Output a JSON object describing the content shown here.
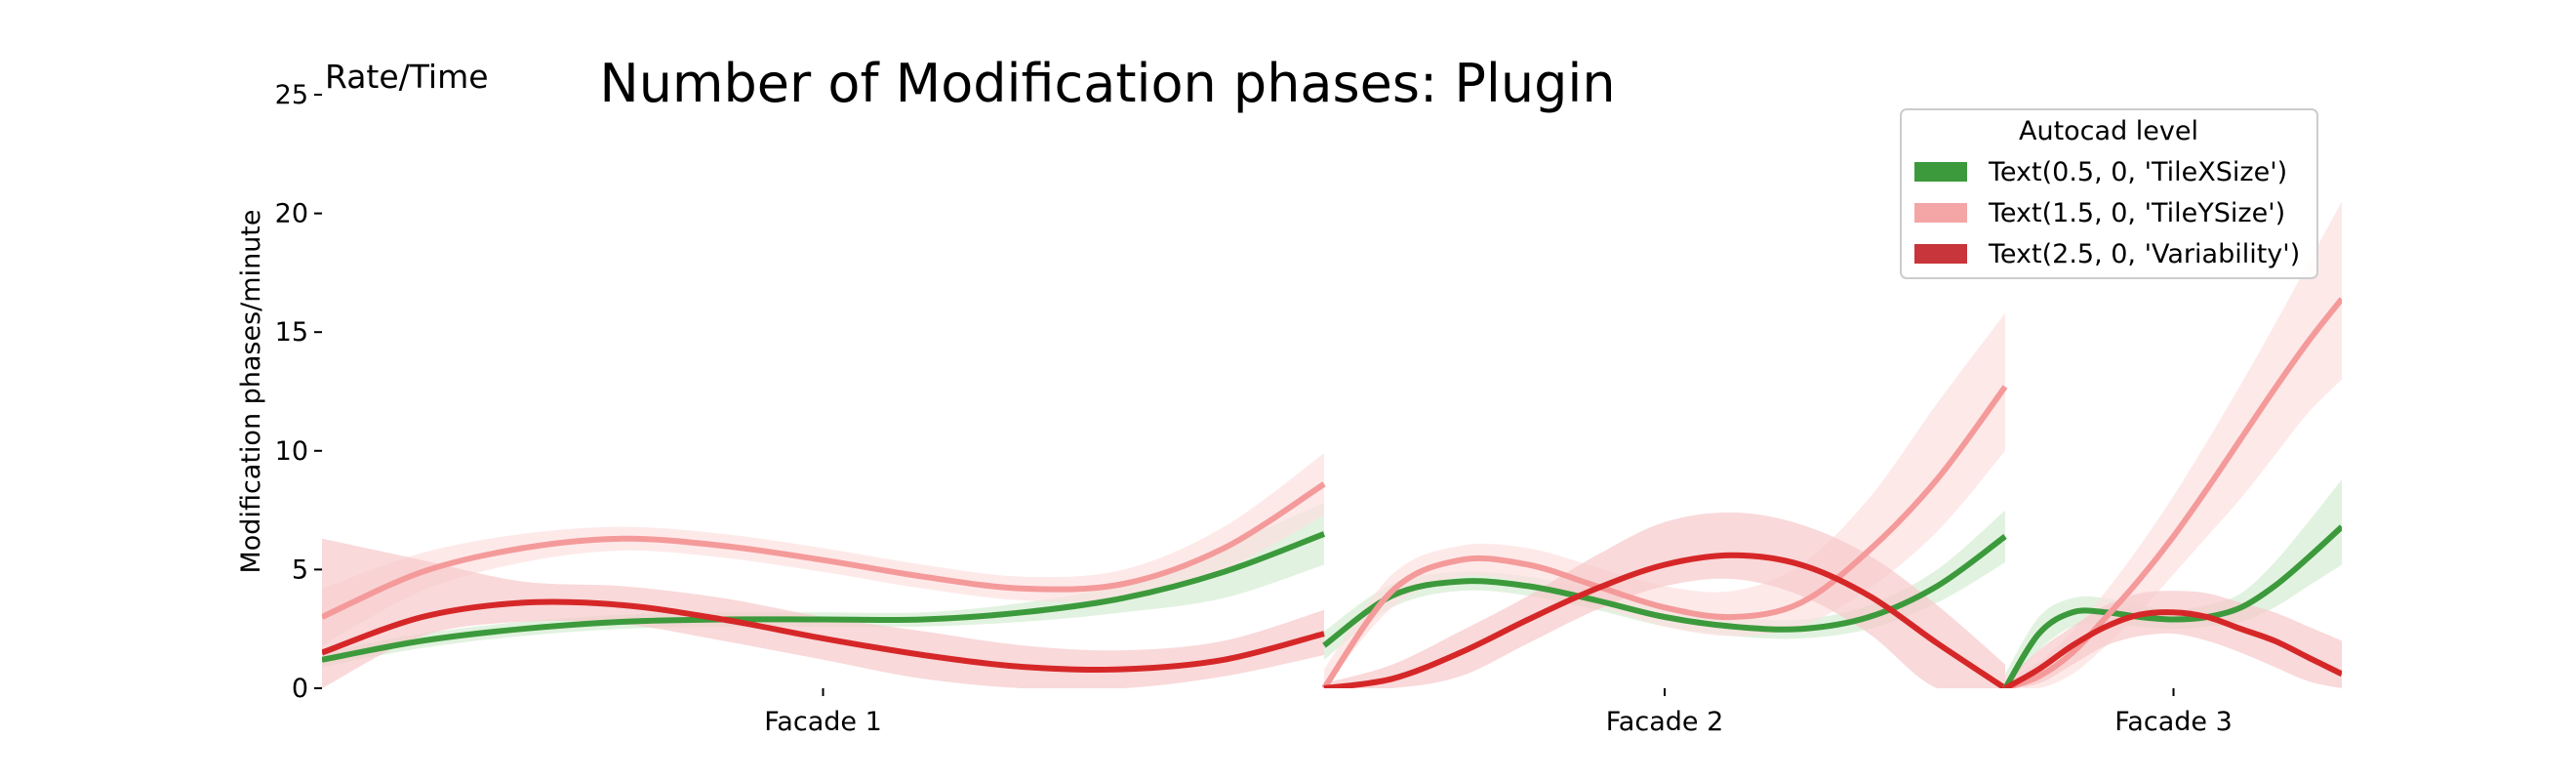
{
  "chart_data": {
    "type": "line",
    "title": "Number of Modification phases: Plugin",
    "subtitle": "Rate/Time",
    "ylabel": "Modification phases/minute",
    "xlabel": "",
    "ylim": [
      0,
      25
    ],
    "yticks": [
      0,
      5,
      10,
      15,
      20,
      25
    ],
    "grid": false,
    "categories": [
      "Facade 1",
      "Facade 2",
      "Facade 3"
    ],
    "legend": {
      "title": "Autocad level",
      "placement": "top-right",
      "entries": [
        {
          "label": "Text(0.5, 0, 'TileXSize')",
          "color": "#3c9a3c"
        },
        {
          "label": "Text(1.5, 0, 'TileYSize')",
          "color": "#f4a6a6"
        },
        {
          "label": "Text(2.5, 0, 'Variability')",
          "color": "#c8353a"
        }
      ]
    },
    "colors": {
      "TileXSize": {
        "line": "#3c9a3c",
        "band": "#d6ecd3"
      },
      "TileYSize": {
        "line": "#f49a9a",
        "band": "#fde0e0"
      },
      "Variability": {
        "line": "#d62728",
        "band": "#f7c9cb"
      }
    },
    "panels": [
      {
        "category": "Facade 1",
        "x_extent": [
          0,
          1
        ],
        "series": [
          {
            "name": "TileXSize",
            "x": [
              0,
              0.1,
              0.2,
              0.3,
              0.4,
              0.5,
              0.6,
              0.7,
              0.8,
              0.9,
              1.0
            ],
            "y": [
              1.2,
              2.0,
              2.5,
              2.8,
              2.9,
              2.9,
              2.9,
              3.2,
              3.8,
              4.9,
              6.5
            ],
            "lower": [
              0.9,
              1.7,
              2.2,
              2.5,
              2.6,
              2.6,
              2.6,
              2.8,
              3.2,
              3.8,
              5.2
            ],
            "upper": [
              1.5,
              2.3,
              2.8,
              3.1,
              3.2,
              3.2,
              3.2,
              3.6,
              4.4,
              6.0,
              7.8
            ]
          },
          {
            "name": "TileYSize",
            "x": [
              0,
              0.1,
              0.2,
              0.3,
              0.4,
              0.5,
              0.6,
              0.7,
              0.8,
              0.9,
              1.0
            ],
            "y": [
              3.0,
              4.9,
              5.9,
              6.3,
              6.0,
              5.4,
              4.7,
              4.2,
              4.4,
              5.9,
              8.6
            ],
            "lower": [
              1.8,
              4.1,
              5.3,
              5.8,
              5.5,
              4.9,
              4.2,
              3.7,
              3.8,
              5.0,
              7.3
            ],
            "upper": [
              4.2,
              5.7,
              6.5,
              6.8,
              6.5,
              5.9,
              5.2,
              4.7,
              5.0,
              6.8,
              9.9
            ]
          },
          {
            "name": "Variability",
            "x": [
              0,
              0.1,
              0.2,
              0.3,
              0.4,
              0.5,
              0.6,
              0.7,
              0.8,
              0.9,
              1.0
            ],
            "y": [
              1.5,
              3.0,
              3.6,
              3.5,
              2.9,
              2.1,
              1.4,
              0.9,
              0.8,
              1.2,
              2.3
            ],
            "lower": [
              0.0,
              2.2,
              2.8,
              2.7,
              2.0,
              1.2,
              0.4,
              0.0,
              0.0,
              0.5,
              1.4
            ],
            "upper": [
              6.3,
              5.4,
              4.5,
              4.3,
              3.8,
              3.0,
              2.4,
              1.8,
              1.6,
              2.0,
              3.3
            ]
          }
        ]
      },
      {
        "category": "Facade 2",
        "x_extent": [
          0,
          1
        ],
        "series": [
          {
            "name": "TileXSize",
            "x": [
              0,
              0.1,
              0.2,
              0.3,
              0.4,
              0.5,
              0.6,
              0.7,
              0.8,
              0.9,
              1.0
            ],
            "y": [
              1.8,
              3.9,
              4.5,
              4.3,
              3.7,
              3.0,
              2.6,
              2.5,
              3.0,
              4.3,
              6.4
            ],
            "lower": [
              1.2,
              3.4,
              4.1,
              3.9,
              3.3,
              2.6,
              2.2,
              2.1,
              2.5,
              3.6,
              5.3
            ],
            "upper": [
              2.4,
              4.4,
              4.9,
              4.7,
              4.1,
              3.4,
              3.0,
              2.9,
              3.5,
              5.0,
              7.5
            ]
          },
          {
            "name": "TileYSize",
            "x": [
              0,
              0.1,
              0.2,
              0.3,
              0.4,
              0.5,
              0.6,
              0.7,
              0.8,
              0.9,
              1.0
            ],
            "y": [
              0.0,
              4.1,
              5.4,
              5.2,
              4.3,
              3.4,
              3.0,
              3.6,
              5.8,
              8.8,
              12.7
            ],
            "lower": [
              0.0,
              3.4,
              4.7,
              4.4,
              3.5,
              2.6,
              2.2,
              2.6,
              4.2,
              6.6,
              10.0
            ],
            "upper": [
              0.8,
              4.8,
              6.0,
              5.9,
              5.1,
              4.3,
              4.1,
              5.2,
              8.0,
              12.0,
              15.8
            ]
          },
          {
            "name": "Variability",
            "x": [
              0,
              0.1,
              0.2,
              0.3,
              0.4,
              0.5,
              0.6,
              0.7,
              0.8,
              0.9,
              1.0
            ],
            "y": [
              0.0,
              0.4,
              1.5,
              2.9,
              4.2,
              5.2,
              5.6,
              5.2,
              3.9,
              1.9,
              0.0
            ],
            "lower": [
              0.0,
              0.0,
              0.5,
              1.9,
              3.3,
              4.3,
              4.6,
              3.9,
              2.3,
              0.0,
              0.0
            ],
            "upper": [
              0.2,
              1.0,
              2.4,
              3.9,
              5.6,
              7.0,
              7.4,
              6.9,
              5.6,
              3.5,
              1.0
            ]
          }
        ]
      },
      {
        "category": "Facade 3",
        "x_extent": [
          0,
          1
        ],
        "series": [
          {
            "name": "TileXSize",
            "x": [
              0,
              0.1,
              0.2,
              0.3,
              0.4,
              0.5,
              0.6,
              0.7,
              0.8,
              0.9,
              1.0
            ],
            "y": [
              0.0,
              2.3,
              3.2,
              3.2,
              3.0,
              2.9,
              3.0,
              3.4,
              4.3,
              5.5,
              6.8
            ],
            "lower": [
              0.0,
              1.6,
              2.6,
              2.7,
              2.6,
              2.5,
              2.6,
              2.8,
              3.4,
              4.3,
              5.2
            ],
            "upper": [
              0.6,
              3.0,
              3.8,
              3.8,
              3.5,
              3.3,
              3.5,
              4.0,
              5.3,
              7.0,
              8.8
            ]
          },
          {
            "name": "TileYSize",
            "x": [
              0,
              0.1,
              0.2,
              0.3,
              0.4,
              0.5,
              0.6,
              0.7,
              0.8,
              0.9,
              1.0
            ],
            "y": [
              0.0,
              0.5,
              1.5,
              3.0,
              4.6,
              6.4,
              8.4,
              10.5,
              12.6,
              14.6,
              16.4
            ],
            "lower": [
              0.0,
              0.0,
              0.6,
              1.8,
              3.2,
              4.8,
              6.4,
              8.0,
              9.8,
              11.6,
              13.0
            ],
            "upper": [
              0.5,
              1.1,
              2.4,
              4.1,
              6.0,
              8.1,
              10.4,
              12.8,
              15.3,
              17.9,
              20.5
            ]
          },
          {
            "name": "Variability",
            "x": [
              0,
              0.1,
              0.2,
              0.3,
              0.4,
              0.5,
              0.6,
              0.7,
              0.8,
              0.9,
              1.0
            ],
            "y": [
              0.0,
              0.8,
              1.8,
              2.6,
              3.1,
              3.2,
              3.0,
              2.5,
              2.0,
              1.3,
              0.6
            ],
            "lower": [
              0.0,
              0.2,
              1.0,
              1.8,
              2.2,
              2.3,
              2.0,
              1.5,
              0.9,
              0.3,
              0.0
            ],
            "upper": [
              0.3,
              1.6,
              2.6,
              3.5,
              4.0,
              4.1,
              4.0,
              3.6,
              3.2,
              2.6,
              2.0
            ]
          }
        ]
      }
    ]
  }
}
